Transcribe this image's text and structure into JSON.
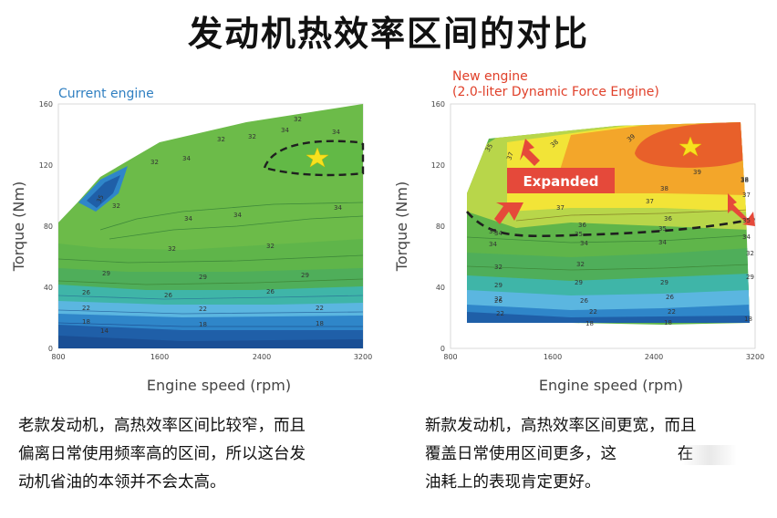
{
  "title": "发动机热效率区间的对比",
  "chart_data": [
    {
      "type": "heatmap",
      "title": "Current engine",
      "xlabel": "Engine speed (rpm)",
      "ylabel": "Torque (Nm)",
      "xlim": [
        800,
        3200
      ],
      "ylim": [
        0,
        160
      ],
      "x_ticks": [
        "800",
        "1600",
        "2400",
        "3200"
      ],
      "y_ticks": [
        "0",
        "40",
        "80",
        "120",
        "160"
      ],
      "contour_labels": [
        "14",
        "18",
        "22",
        "26",
        "29",
        "32",
        "34",
        "32",
        "34",
        "32",
        "34",
        "34",
        "32",
        "32",
        "32",
        "34",
        "34",
        "29",
        "26",
        "22",
        "18",
        "29",
        "26",
        "22",
        "18",
        "35",
        "32"
      ],
      "max_efficiency_marker": "star"
    },
    {
      "type": "heatmap",
      "title_line1": "New engine",
      "title_line2": "(2.0-liter Dynamic Force Engine)",
      "xlabel": "Engine speed (rpm)",
      "ylabel": "Torque (Nm)",
      "xlim": [
        800,
        3200
      ],
      "ylim": [
        0,
        160
      ],
      "x_ticks": [
        "800",
        "1600",
        "2400",
        "3200"
      ],
      "y_ticks": [
        "0",
        "40",
        "80",
        "120",
        "160"
      ],
      "badge": "Expanded",
      "contour_labels": [
        "35",
        "37",
        "38",
        "39",
        "39",
        "38",
        "37",
        "37",
        "38",
        "36",
        "35",
        "35",
        "36",
        "35",
        "34",
        "34",
        "34",
        "34",
        "32",
        "32",
        "32",
        "29",
        "29",
        "29",
        "29",
        "26",
        "26",
        "26",
        "22",
        "22",
        "22",
        "18",
        "18",
        "18",
        "38",
        "37",
        "35",
        "32",
        "34"
      ],
      "max_efficiency_marker": "star"
    }
  ],
  "captions": {
    "left": [
      "老款发动机，高热效率区间比较窄，而且",
      "偏离日常使用频率高的区间，所以这台发",
      "动机省油的本领并不会太高。"
    ],
    "right": [
      "新款发动机，高热效率区间更宽，而且",
      "覆盖日常使用区间更多，这            在",
      "油耗上的表现肯定更好。"
    ]
  },
  "colors": {
    "deep_blue": "#1f5fa8",
    "blue": "#2f86c9",
    "light_blue": "#5bb6e0",
    "teal": "#3fb5a8",
    "green": "#5fb54a",
    "mid_green": "#7cc14a",
    "yellow_green": "#b8d64a",
    "yellow": "#f2e437",
    "orange": "#f3a62a",
    "red_orange": "#e8602a",
    "star": "#f7e11e",
    "badge": "#e5493a",
    "legend_blue": "#2f7fc1",
    "legend_red": "#e0402a"
  }
}
